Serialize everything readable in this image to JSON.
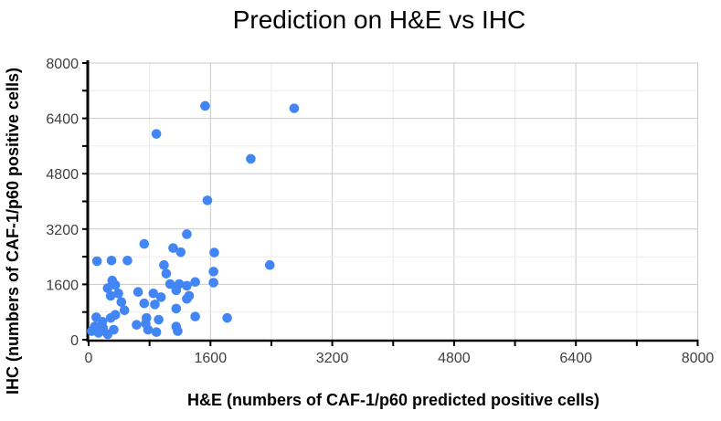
{
  "page": {
    "background": "#ffffff"
  },
  "chart": {
    "title": "Prediction on H&E vs IHC",
    "x_axis_label": "H&E (numbers of CAF-1/p60 predicted positive cells)",
    "y_axis_label": "IHC (numbers of CAF-1/p60 positive cells)"
  },
  "chart_data": {
    "type": "scatter",
    "title": "Prediction on H&E vs IHC",
    "xlabel": "H&E (numbers of CAF-1/p60 predicted positive cells)",
    "ylabel": "IHC (numbers of CAF-1/p60 positive cells)",
    "xlim": [
      0,
      8000
    ],
    "ylim": [
      0,
      8000
    ],
    "x_ticks": [
      0,
      1600,
      3200,
      4800,
      6400,
      8000
    ],
    "y_ticks": [
      0,
      1600,
      3200,
      4800,
      6400,
      8000
    ],
    "minor_grid_step": 800,
    "grid": true,
    "legend": "none",
    "point_color": "#4285f4",
    "major_grid_color": "#c9c9c9",
    "minor_grid_color": "#ebebeb",
    "axis_color": "#000000",
    "tick_label_color": "#3f3f3f",
    "points": [
      [
        1530,
        6760
      ],
      [
        2700,
        6690
      ],
      [
        890,
        5950
      ],
      [
        2130,
        5230
      ],
      [
        1560,
        4030
      ],
      [
        1290,
        3050
      ],
      [
        730,
        2770
      ],
      [
        1110,
        2650
      ],
      [
        1210,
        2530
      ],
      [
        1650,
        2520
      ],
      [
        2380,
        2160
      ],
      [
        110,
        2270
      ],
      [
        300,
        2290
      ],
      [
        510,
        2290
      ],
      [
        990,
        2160
      ],
      [
        1020,
        1910
      ],
      [
        1640,
        1970
      ],
      [
        310,
        1710
      ],
      [
        1640,
        1650
      ],
      [
        1070,
        1610
      ],
      [
        1190,
        1610
      ],
      [
        1290,
        1560
      ],
      [
        1400,
        1670
      ],
      [
        350,
        1580
      ],
      [
        250,
        1490
      ],
      [
        650,
        1380
      ],
      [
        850,
        1340
      ],
      [
        1150,
        1430
      ],
      [
        1320,
        1270
      ],
      [
        390,
        1340
      ],
      [
        290,
        1270
      ],
      [
        950,
        1230
      ],
      [
        430,
        1090
      ],
      [
        730,
        1050
      ],
      [
        870,
        1020
      ],
      [
        1290,
        1180
      ],
      [
        470,
        850
      ],
      [
        1150,
        900
      ],
      [
        350,
        720
      ],
      [
        100,
        650
      ],
      [
        760,
        630
      ],
      [
        920,
        580
      ],
      [
        1820,
        630
      ],
      [
        290,
        630
      ],
      [
        1400,
        670
      ],
      [
        180,
        520
      ],
      [
        80,
        380
      ],
      [
        190,
        340
      ],
      [
        330,
        290
      ],
      [
        40,
        250
      ],
      [
        130,
        200
      ],
      [
        630,
        430
      ],
      [
        750,
        470
      ],
      [
        780,
        290
      ],
      [
        890,
        220
      ],
      [
        1150,
        380
      ],
      [
        1170,
        250
      ],
      [
        250,
        160
      ]
    ]
  }
}
